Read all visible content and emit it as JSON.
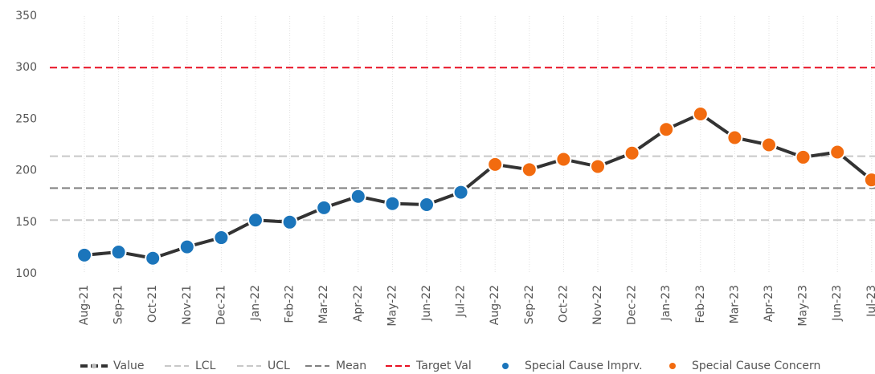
{
  "chart_data": {
    "type": "line",
    "categories": [
      "Aug-21",
      "Sep-21",
      "Oct-21",
      "Nov-21",
      "Dec-21",
      "Jan-22",
      "Feb-22",
      "Mar-22",
      "Apr-22",
      "May-22",
      "Jun-22",
      "Jul-22",
      "Aug-22",
      "Sep-22",
      "Oct-22",
      "Nov-22",
      "Dec-22",
      "Jan-23",
      "Feb-23",
      "Mar-23",
      "Apr-23",
      "May-23",
      "Jun-23",
      "Jul-23"
    ],
    "series": [
      {
        "name": "Value",
        "color": "#333333",
        "values": [
          118,
          121,
          115,
          126,
          135,
          152,
          150,
          164,
          175,
          168,
          167,
          179,
          206,
          201,
          211,
          204,
          217,
          240,
          255,
          232,
          225,
          213,
          218,
          191
        ],
        "marker_colors": [
          "#1b75bb",
          "#1b75bb",
          "#1b75bb",
          "#1b75bb",
          "#1b75bb",
          "#1b75bb",
          "#1b75bb",
          "#1b75bb",
          "#1b75bb",
          "#1b75bb",
          "#1b75bb",
          "#1b75bb",
          "#f26b0f",
          "#f26b0f",
          "#f26b0f",
          "#f26b0f",
          "#f26b0f",
          "#f26b0f",
          "#f26b0f",
          "#f26b0f",
          "#f26b0f",
          "#f26b0f",
          "#f26b0f",
          "#f26b0f"
        ]
      }
    ],
    "reference_lines": [
      {
        "name": "LCL",
        "value": 152,
        "color": "#c8c8c8"
      },
      {
        "name": "UCL",
        "value": 214,
        "color": "#c8c8c8"
      },
      {
        "name": "Mean",
        "value": 183,
        "color": "#808080"
      },
      {
        "name": "Target Val",
        "value": 300,
        "color": "#e81123"
      }
    ],
    "legend_markers": [
      {
        "name": "Special Cause Imprv.",
        "color": "#1b75bb"
      },
      {
        "name": "Special Cause Concern",
        "color": "#f26b0f"
      }
    ],
    "ylim": [
      100,
      350
    ],
    "yticks": [
      100,
      150,
      200,
      250,
      300,
      350
    ],
    "grid": true
  }
}
